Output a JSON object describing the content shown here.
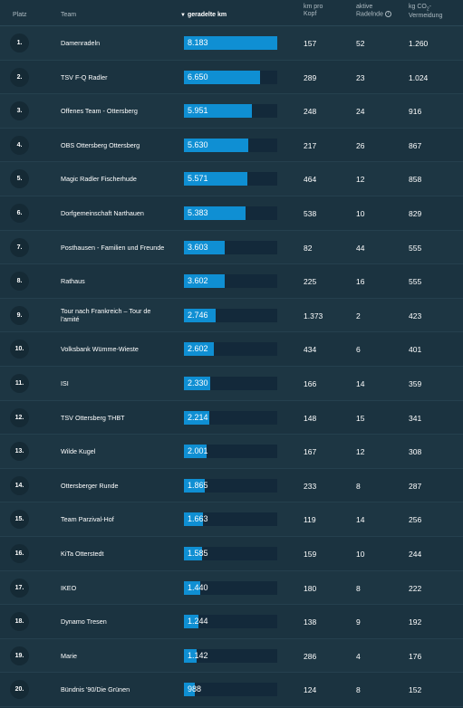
{
  "headers": {
    "rank": "Platz",
    "team": "Team",
    "km": "geradelte km",
    "km_per_head_line1": "km pro",
    "km_per_head_line2": "Kopf",
    "active_line1": "aktive",
    "active_line2": "Radelnde",
    "co2_line1": "kg CO",
    "co2_sub": "2",
    "co2_suffix": "-",
    "co2_line2": "Vermeidung"
  },
  "max_km": 8183,
  "rows": [
    {
      "rank": "1.",
      "team": "Damenradeln",
      "km": "8.183",
      "km_value": 8183,
      "km_per_head": "157",
      "active": "52",
      "co2": "1.260"
    },
    {
      "rank": "2.",
      "team": "TSV F-Q Radler",
      "km": "6.650",
      "km_value": 6650,
      "km_per_head": "289",
      "active": "23",
      "co2": "1.024"
    },
    {
      "rank": "3.",
      "team": "Offenes Team - Ottersberg",
      "km": "5.951",
      "km_value": 5951,
      "km_per_head": "248",
      "active": "24",
      "co2": "916"
    },
    {
      "rank": "4.",
      "team": "OBS Ottersberg Ottersberg",
      "km": "5.630",
      "km_value": 5630,
      "km_per_head": "217",
      "active": "26",
      "co2": "867"
    },
    {
      "rank": "5.",
      "team": "Magic Radler Fischerhude",
      "km": "5.571",
      "km_value": 5571,
      "km_per_head": "464",
      "active": "12",
      "co2": "858"
    },
    {
      "rank": "6.",
      "team": "Dorfgemeinschaft Narthauen",
      "km": "5.383",
      "km_value": 5383,
      "km_per_head": "538",
      "active": "10",
      "co2": "829"
    },
    {
      "rank": "7.",
      "team": "Posthausen - Familien und Freunde",
      "km": "3.603",
      "km_value": 3603,
      "km_per_head": "82",
      "active": "44",
      "co2": "555"
    },
    {
      "rank": "8.",
      "team": "Rathaus",
      "km": "3.602",
      "km_value": 3602,
      "km_per_head": "225",
      "active": "16",
      "co2": "555"
    },
    {
      "rank": "9.",
      "team": "Tour nach Frankreich – Tour de l'amité",
      "km": "2.746",
      "km_value": 2746,
      "km_per_head": "1.373",
      "active": "2",
      "co2": "423"
    },
    {
      "rank": "10.",
      "team": "Volksbank Wümme-Wieste",
      "km": "2.602",
      "km_value": 2602,
      "km_per_head": "434",
      "active": "6",
      "co2": "401"
    },
    {
      "rank": "11.",
      "team": "ISI",
      "km": "2.330",
      "km_value": 2330,
      "km_per_head": "166",
      "active": "14",
      "co2": "359"
    },
    {
      "rank": "12.",
      "team": "TSV Ottersberg THBT",
      "km": "2.214",
      "km_value": 2214,
      "km_per_head": "148",
      "active": "15",
      "co2": "341"
    },
    {
      "rank": "13.",
      "team": "Wilde Kugel",
      "km": "2.001",
      "km_value": 2001,
      "km_per_head": "167",
      "active": "12",
      "co2": "308"
    },
    {
      "rank": "14.",
      "team": "Ottersberger Runde",
      "km": "1.865",
      "km_value": 1865,
      "km_per_head": "233",
      "active": "8",
      "co2": "287"
    },
    {
      "rank": "15.",
      "team": "Team Parzival-Hof",
      "km": "1.663",
      "km_value": 1663,
      "km_per_head": "119",
      "active": "14",
      "co2": "256"
    },
    {
      "rank": "16.",
      "team": "KiTa Otterstedt",
      "km": "1.585",
      "km_value": 1585,
      "km_per_head": "159",
      "active": "10",
      "co2": "244"
    },
    {
      "rank": "17.",
      "team": "IKEO",
      "km": "1.440",
      "km_value": 1440,
      "km_per_head": "180",
      "active": "8",
      "co2": "222"
    },
    {
      "rank": "18.",
      "team": "Dynamo Tresen",
      "km": "1.244",
      "km_value": 1244,
      "km_per_head": "138",
      "active": "9",
      "co2": "192"
    },
    {
      "rank": "19.",
      "team": "Marie",
      "km": "1.142",
      "km_value": 1142,
      "km_per_head": "286",
      "active": "4",
      "co2": "176"
    },
    {
      "rank": "20.",
      "team": "Bündnis '90/Die Grünen",
      "km": "988",
      "km_value": 988,
      "km_per_head": "124",
      "active": "8",
      "co2": "152"
    }
  ]
}
